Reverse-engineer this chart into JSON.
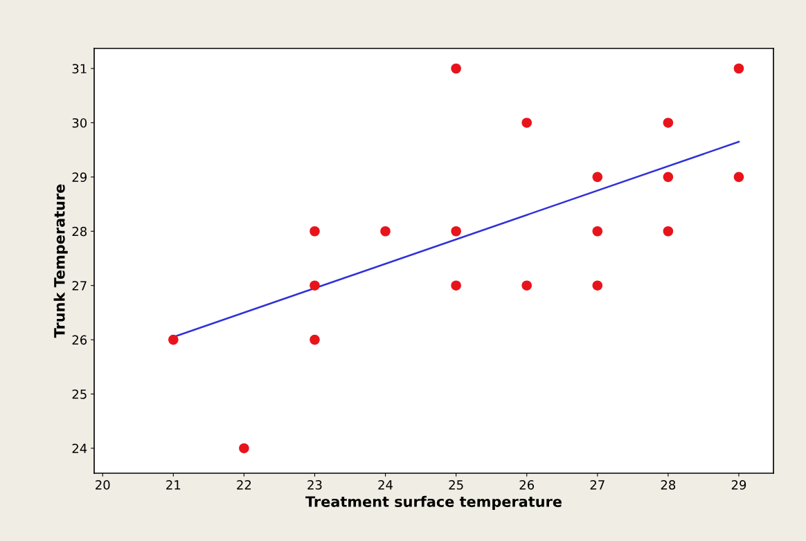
{
  "chart_data": {
    "type": "scatter",
    "xlabel": "Treatment surface temperature",
    "ylabel": "Trunk Temperature",
    "xlim": [
      19.88,
      29.49
    ],
    "ylim": [
      23.54,
      31.37
    ],
    "xticks": [
      20,
      21,
      22,
      23,
      24,
      25,
      26,
      27,
      28,
      29
    ],
    "yticks": [
      24,
      25,
      26,
      27,
      28,
      29,
      30,
      31
    ],
    "grid": false,
    "series": [
      {
        "marker": "circle",
        "color": "#e8141c",
        "x": [
          21,
          22,
          23,
          23,
          23,
          24,
          25,
          25,
          25,
          26,
          26,
          27,
          27,
          27,
          28,
          28,
          28,
          29,
          29
        ],
        "values": [
          26,
          24,
          28,
          27,
          26,
          28,
          31,
          28,
          27,
          30,
          27,
          29,
          28,
          27,
          30,
          29,
          28,
          31,
          29
        ]
      },
      {
        "type": "line",
        "color": "#3030d8",
        "x": [
          21,
          29
        ],
        "values": [
          26.05,
          29.65
        ]
      }
    ]
  }
}
